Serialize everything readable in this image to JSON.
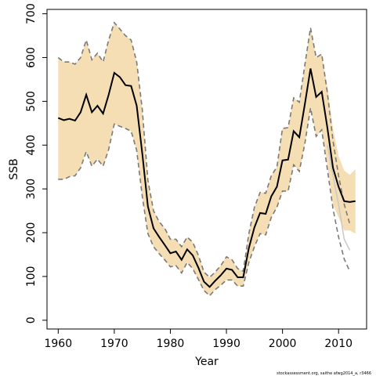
{
  "chart_data": {
    "type": "line",
    "title": "",
    "xlabel": "Year",
    "ylabel": "SSB",
    "xlim": [
      1958,
      2015
    ],
    "ylim": [
      -20,
      710
    ],
    "xticks": [
      1960,
      1970,
      1980,
      1990,
      2000,
      2010
    ],
    "yticks": [
      0,
      100,
      200,
      300,
      400,
      500,
      600,
      700
    ],
    "grid": false,
    "legend": "none",
    "colors": {
      "band": "#f5deb3",
      "estimate": "#000000",
      "retro": "#7a7a7a",
      "previous": "#c8c8c8"
    },
    "x": [
      1960,
      1961,
      1962,
      1963,
      1964,
      1965,
      1966,
      1967,
      1968,
      1969,
      1970,
      1971,
      1972,
      1973,
      1974,
      1975,
      1976,
      1977,
      1978,
      1979,
      1980,
      1981,
      1982,
      1983,
      1984,
      1985,
      1986,
      1987,
      1988,
      1989,
      1990,
      1991,
      1992,
      1993,
      1994,
      1995,
      1996,
      1997,
      1998,
      1999,
      2000,
      2001,
      2002,
      2003,
      2004,
      2005,
      2006,
      2007,
      2008,
      2009,
      2010,
      2011,
      2012,
      2013
    ],
    "series": [
      {
        "role": "estimate",
        "values": [
          462,
          457,
          460,
          456,
          475,
          515,
          475,
          490,
          472,
          515,
          565,
          555,
          537,
          535,
          490,
          380,
          260,
          210,
          190,
          172,
          153,
          157,
          138,
          162,
          148,
          120,
          88,
          76,
          90,
          103,
          118,
          115,
          98,
          98,
          165,
          212,
          245,
          243,
          283,
          305,
          365,
          367,
          432,
          418,
          495,
          575,
          510,
          522,
          440,
          348,
          305,
          272,
          270,
          272
        ]
      },
      {
        "role": "upper",
        "values": [
          600,
          590,
          590,
          585,
          600,
          640,
          595,
          610,
          590,
          640,
          680,
          665,
          650,
          640,
          590,
          480,
          320,
          250,
          225,
          210,
          185,
          185,
          168,
          190,
          178,
          148,
          110,
          98,
          110,
          125,
          145,
          138,
          118,
          112,
          198,
          258,
          292,
          290,
          330,
          350,
          438,
          440,
          508,
          498,
          585,
          668,
          600,
          608,
          532,
          438,
          375,
          342,
          332,
          345
        ]
      },
      {
        "role": "lower",
        "values": [
          322,
          322,
          328,
          330,
          348,
          385,
          352,
          368,
          352,
          390,
          448,
          443,
          438,
          432,
          388,
          282,
          198,
          168,
          152,
          138,
          122,
          125,
          108,
          132,
          118,
          93,
          68,
          56,
          70,
          80,
          92,
          92,
          78,
          78,
          132,
          168,
          198,
          195,
          235,
          258,
          295,
          295,
          355,
          340,
          405,
          485,
          420,
          435,
          355,
          265,
          235,
          205,
          205,
          198
        ]
      },
      {
        "role": "retro_upper",
        "x": [
          1960,
          1961,
          1962,
          1963,
          1964,
          1965,
          1966,
          1967,
          1968,
          1969,
          1970,
          1971,
          1972,
          1973,
          1974,
          1975,
          1976,
          1977,
          1978,
          1979,
          1980,
          1981,
          1982,
          1983,
          1984,
          1985,
          1986,
          1987,
          1988,
          1989,
          1990,
          1991,
          1992,
          1993,
          1994,
          1995,
          1996,
          1997,
          1998,
          1999,
          2000,
          2001,
          2002,
          2003,
          2004,
          2005,
          2006,
          2007,
          2008,
          2009,
          2010,
          2011,
          2012
        ],
        "values": [
          600,
          590,
          590,
          585,
          600,
          640,
          595,
          610,
          590,
          640,
          680,
          665,
          650,
          640,
          590,
          480,
          320,
          250,
          225,
          210,
          185,
          185,
          168,
          190,
          178,
          148,
          110,
          98,
          110,
          125,
          145,
          138,
          118,
          112,
          198,
          258,
          292,
          290,
          330,
          350,
          438,
          440,
          508,
          498,
          585,
          668,
          600,
          608,
          520,
          410,
          330,
          265,
          220
        ]
      },
      {
        "role": "retro_lower",
        "x": [
          1960,
          1961,
          1962,
          1963,
          1964,
          1965,
          1966,
          1967,
          1968,
          1969,
          1970,
          1971,
          1972,
          1973,
          1974,
          1975,
          1976,
          1977,
          1978,
          1979,
          1980,
          1981,
          1982,
          1983,
          1984,
          1985,
          1986,
          1987,
          1988,
          1989,
          1990,
          1991,
          1992,
          1993,
          1994,
          1995,
          1996,
          1997,
          1998,
          1999,
          2000,
          2001,
          2002,
          2003,
          2004,
          2005,
          2006,
          2007,
          2008,
          2009,
          2010,
          2011,
          2012
        ],
        "values": [
          322,
          322,
          328,
          330,
          348,
          385,
          352,
          368,
          352,
          390,
          448,
          443,
          438,
          432,
          388,
          282,
          198,
          168,
          152,
          138,
          122,
          125,
          108,
          132,
          118,
          93,
          68,
          56,
          70,
          80,
          92,
          92,
          78,
          78,
          132,
          168,
          198,
          195,
          235,
          258,
          295,
          295,
          355,
          340,
          405,
          485,
          420,
          435,
          345,
          255,
          190,
          140,
          112
        ]
      },
      {
        "role": "previous_estimate",
        "x": [
          2008,
          2009,
          2010,
          2011,
          2012
        ],
        "values": [
          400,
          330,
          265,
          185,
          160
        ]
      }
    ]
  },
  "source_note": "stockassessment.org, saithe afwg2014_a, r3466"
}
